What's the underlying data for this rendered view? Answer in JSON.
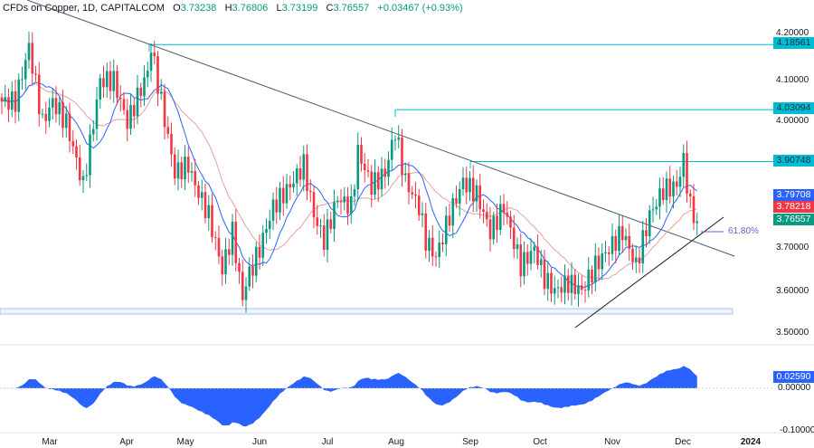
{
  "header": {
    "symbol": "CFDs on Copper, 1D, CAPITALCOM",
    "o_label": "O",
    "o": "3.73238",
    "h_label": "H",
    "h": "3.76806",
    "l_label": "L",
    "l": "3.73199",
    "c_label": "C",
    "c": "3.76557",
    "change": "+0.03467 (+0.93%)"
  },
  "chart_data": {
    "type": "candlestick",
    "price_ticks": [
      "4.20000",
      "4.10000",
      "4.00000",
      "3.70000",
      "3.60000",
      "3.50000"
    ],
    "price_tick_values": [
      4.2,
      4.1,
      4.0,
      3.7,
      3.6,
      3.5
    ],
    "ylim": [
      3.4,
      4.28
    ],
    "price_path": [
      [
        0,
        4.05
      ],
      [
        4,
        4.05
      ],
      [
        8,
        4.18
      ],
      [
        12,
        4.0
      ],
      [
        15,
        4.05
      ],
      [
        19,
        4.0
      ],
      [
        24,
        3.85
      ],
      [
        29,
        4.1
      ],
      [
        33,
        4.1
      ],
      [
        37,
        4.0
      ],
      [
        43,
        4.12
      ],
      [
        44,
        4.18
      ],
      [
        47,
        4.05
      ],
      [
        51,
        3.88
      ],
      [
        55,
        3.9
      ],
      [
        57,
        3.85
      ],
      [
        61,
        3.78
      ],
      [
        65,
        3.65
      ],
      [
        68,
        3.74
      ],
      [
        71,
        3.58
      ],
      [
        72,
        3.62
      ],
      [
        76,
        3.7
      ],
      [
        80,
        3.8
      ],
      [
        85,
        3.85
      ],
      [
        89,
        3.9
      ],
      [
        92,
        3.78
      ],
      [
        95,
        3.72
      ],
      [
        99,
        3.82
      ],
      [
        103,
        3.8
      ],
      [
        105,
        3.93
      ],
      [
        109,
        3.85
      ],
      [
        113,
        3.88
      ],
      [
        116,
        3.98
      ],
      [
        119,
        3.86
      ],
      [
        123,
        3.8
      ],
      [
        125,
        3.72
      ],
      [
        128,
        3.68
      ],
      [
        132,
        3.78
      ],
      [
        136,
        3.86
      ],
      [
        140,
        3.83
      ],
      [
        144,
        3.74
      ],
      [
        148,
        3.8
      ],
      [
        153,
        3.66
      ],
      [
        157,
        3.7
      ],
      [
        160,
        3.63
      ],
      [
        163,
        3.6
      ],
      [
        167,
        3.62
      ],
      [
        171,
        3.6
      ],
      [
        175,
        3.66
      ],
      [
        179,
        3.7
      ],
      [
        183,
        3.74
      ],
      [
        187,
        3.66
      ],
      [
        191,
        3.78
      ],
      [
        195,
        3.84
      ],
      [
        199,
        3.85
      ],
      [
        201,
        3.91
      ],
      [
        203,
        3.8
      ],
      [
        205,
        3.76557
      ]
    ],
    "levels": [
      {
        "label": "4.18561",
        "value": 4.18561
      },
      {
        "label": "4.03094",
        "value": 4.03094
      },
      {
        "label": "3.90748",
        "value": 3.90748
      }
    ],
    "last_values": {
      "ma_fast": "3.79708",
      "ma_slow": "3.78218",
      "close": "3.76557"
    },
    "fib_label": "61.80%",
    "oscillator": {
      "value_label": "0.02590",
      "ticks": [
        "0.00000",
        "-0.10000"
      ]
    },
    "months": [
      "Mar",
      "Apr",
      "May",
      "Jun",
      "Jul",
      "Aug",
      "Sep",
      "Oct",
      "Nov",
      "Dec",
      "2024"
    ],
    "colors": {
      "up": "#089981",
      "down": "#f23645",
      "ma_fast": "#2962ff",
      "ma_slow": "#e8a0a0",
      "level": "#00bcd4",
      "osc": "#2962ff"
    }
  }
}
